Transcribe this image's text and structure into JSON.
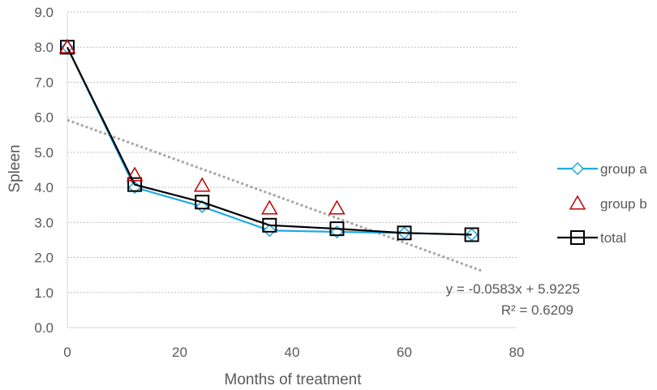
{
  "chart_data": {
    "type": "line",
    "title": "",
    "xlabel": "Months of treatment",
    "ylabel": "Spleen",
    "xlim": [
      0,
      80
    ],
    "ylim": [
      0,
      9
    ],
    "x_ticks": [
      0,
      20,
      40,
      60,
      80
    ],
    "x_tick_labels": [
      "0",
      "20",
      "40",
      "60",
      "80"
    ],
    "y_ticks": [
      0,
      1,
      2,
      3,
      4,
      5,
      6,
      7,
      8,
      9
    ],
    "y_tick_labels": [
      "0.0",
      "1.0",
      "2.0",
      "3.0",
      "4.0",
      "5.0",
      "6.0",
      "7.0",
      "8.0",
      "9.0"
    ],
    "grid": "horizontal dotted",
    "legend_position": "right",
    "series": [
      {
        "name": "group a",
        "marker": "diamond",
        "line": true,
        "color": "#1fa9e1",
        "x": [
          0,
          12,
          24,
          36,
          48,
          60,
          72
        ],
        "y": [
          8.0,
          4.0,
          3.45,
          2.77,
          2.73,
          2.7,
          2.65
        ]
      },
      {
        "name": "group b",
        "marker": "triangle",
        "line": false,
        "color": "#c00000",
        "x": [
          0,
          12,
          24,
          36,
          48
        ],
        "y": [
          8.0,
          4.35,
          4.05,
          3.4,
          3.4
        ]
      },
      {
        "name": "total",
        "marker": "square",
        "line": true,
        "color": "#000000",
        "x": [
          0,
          12,
          24,
          36,
          48,
          60,
          72
        ],
        "y": [
          8.0,
          4.08,
          3.58,
          2.92,
          2.82,
          2.7,
          2.65
        ]
      }
    ],
    "trendline": {
      "type": "linear",
      "color": "#a6a6a6",
      "slope": -0.0583,
      "intercept": 5.9225,
      "x_range": [
        0,
        74
      ],
      "equation_label": "y = -0.0583x + 5.9225",
      "r2_label": "R² = 0.6209"
    }
  }
}
